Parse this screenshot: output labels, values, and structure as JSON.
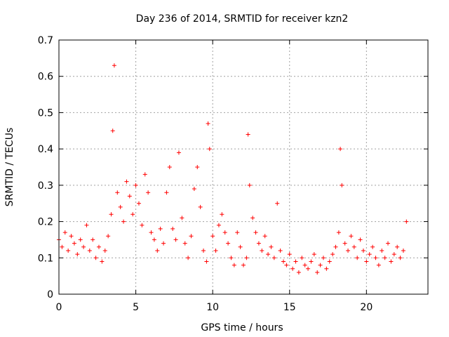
{
  "chart_data": {
    "type": "scatter",
    "title": "Day 236 of 2014, SRMTID for receiver kzn2",
    "xlabel": "GPS time / hours",
    "ylabel": "SRMTID / TECUs",
    "xlim": [
      0,
      24
    ],
    "ylim": [
      0,
      0.7
    ],
    "xticks": [
      0,
      5,
      10,
      15,
      20
    ],
    "yticks": [
      0,
      0.1,
      0.2,
      0.3,
      0.4,
      0.5,
      0.6,
      0.7
    ],
    "xtick_labels": [
      "0",
      "5",
      "10",
      "15",
      "20"
    ],
    "ytick_labels": [
      "0",
      "0.1",
      "0.2",
      "0.3",
      "0.4",
      "0.5",
      "0.6",
      "0.7"
    ],
    "grid": true,
    "marker": "+",
    "marker_color": "#ff0000",
    "series": [
      {
        "name": "kzn2",
        "points_note": "approximate sample read from the dense scatter",
        "x": [
          0.0,
          0.2,
          0.4,
          0.6,
          0.8,
          1.0,
          1.2,
          1.4,
          1.6,
          1.8,
          2.0,
          2.2,
          2.4,
          2.6,
          2.8,
          3.0,
          3.2,
          3.4,
          3.5,
          3.6,
          3.8,
          4.0,
          4.2,
          4.4,
          4.6,
          4.8,
          5.0,
          5.2,
          5.4,
          5.6,
          5.8,
          6.0,
          6.2,
          6.4,
          6.6,
          6.8,
          7.0,
          7.2,
          7.4,
          7.6,
          7.8,
          8.0,
          8.2,
          8.4,
          8.6,
          8.8,
          9.0,
          9.2,
          9.4,
          9.6,
          9.7,
          9.8,
          10.0,
          10.2,
          10.4,
          10.6,
          10.8,
          11.0,
          11.2,
          11.4,
          11.6,
          11.8,
          12.0,
          12.2,
          12.3,
          12.4,
          12.6,
          12.8,
          13.0,
          13.2,
          13.4,
          13.6,
          13.8,
          14.0,
          14.2,
          14.4,
          14.6,
          14.8,
          15.0,
          15.2,
          15.4,
          15.6,
          15.8,
          16.0,
          16.2,
          16.4,
          16.6,
          16.8,
          17.0,
          17.2,
          17.4,
          17.6,
          17.8,
          18.0,
          18.2,
          18.3,
          18.4,
          18.6,
          18.8,
          19.0,
          19.2,
          19.4,
          19.6,
          19.8,
          20.0,
          20.2,
          20.4,
          20.6,
          20.8,
          21.0,
          21.2,
          21.4,
          21.6,
          21.8,
          22.0,
          22.2,
          22.4,
          22.6
        ],
        "y": [
          0.15,
          0.13,
          0.17,
          0.12,
          0.16,
          0.14,
          0.11,
          0.15,
          0.13,
          0.19,
          0.12,
          0.15,
          0.1,
          0.13,
          0.09,
          0.12,
          0.16,
          0.22,
          0.45,
          0.63,
          0.28,
          0.24,
          0.2,
          0.31,
          0.27,
          0.22,
          0.3,
          0.25,
          0.19,
          0.33,
          0.28,
          0.17,
          0.15,
          0.12,
          0.18,
          0.14,
          0.28,
          0.35,
          0.18,
          0.15,
          0.39,
          0.21,
          0.14,
          0.1,
          0.16,
          0.29,
          0.35,
          0.24,
          0.12,
          0.09,
          0.47,
          0.4,
          0.16,
          0.12,
          0.19,
          0.22,
          0.17,
          0.14,
          0.1,
          0.08,
          0.17,
          0.13,
          0.08,
          0.1,
          0.44,
          0.3,
          0.21,
          0.17,
          0.14,
          0.12,
          0.16,
          0.11,
          0.13,
          0.1,
          0.25,
          0.12,
          0.09,
          0.08,
          0.11,
          0.07,
          0.09,
          0.06,
          0.1,
          0.08,
          0.07,
          0.09,
          0.11,
          0.06,
          0.08,
          0.1,
          0.07,
          0.09,
          0.11,
          0.13,
          0.17,
          0.4,
          0.3,
          0.14,
          0.12,
          0.16,
          0.13,
          0.1,
          0.15,
          0.12,
          0.09,
          0.11,
          0.13,
          0.1,
          0.08,
          0.12,
          0.1,
          0.14,
          0.09,
          0.11,
          0.13,
          0.1,
          0.12,
          0.2
        ]
      }
    ]
  }
}
